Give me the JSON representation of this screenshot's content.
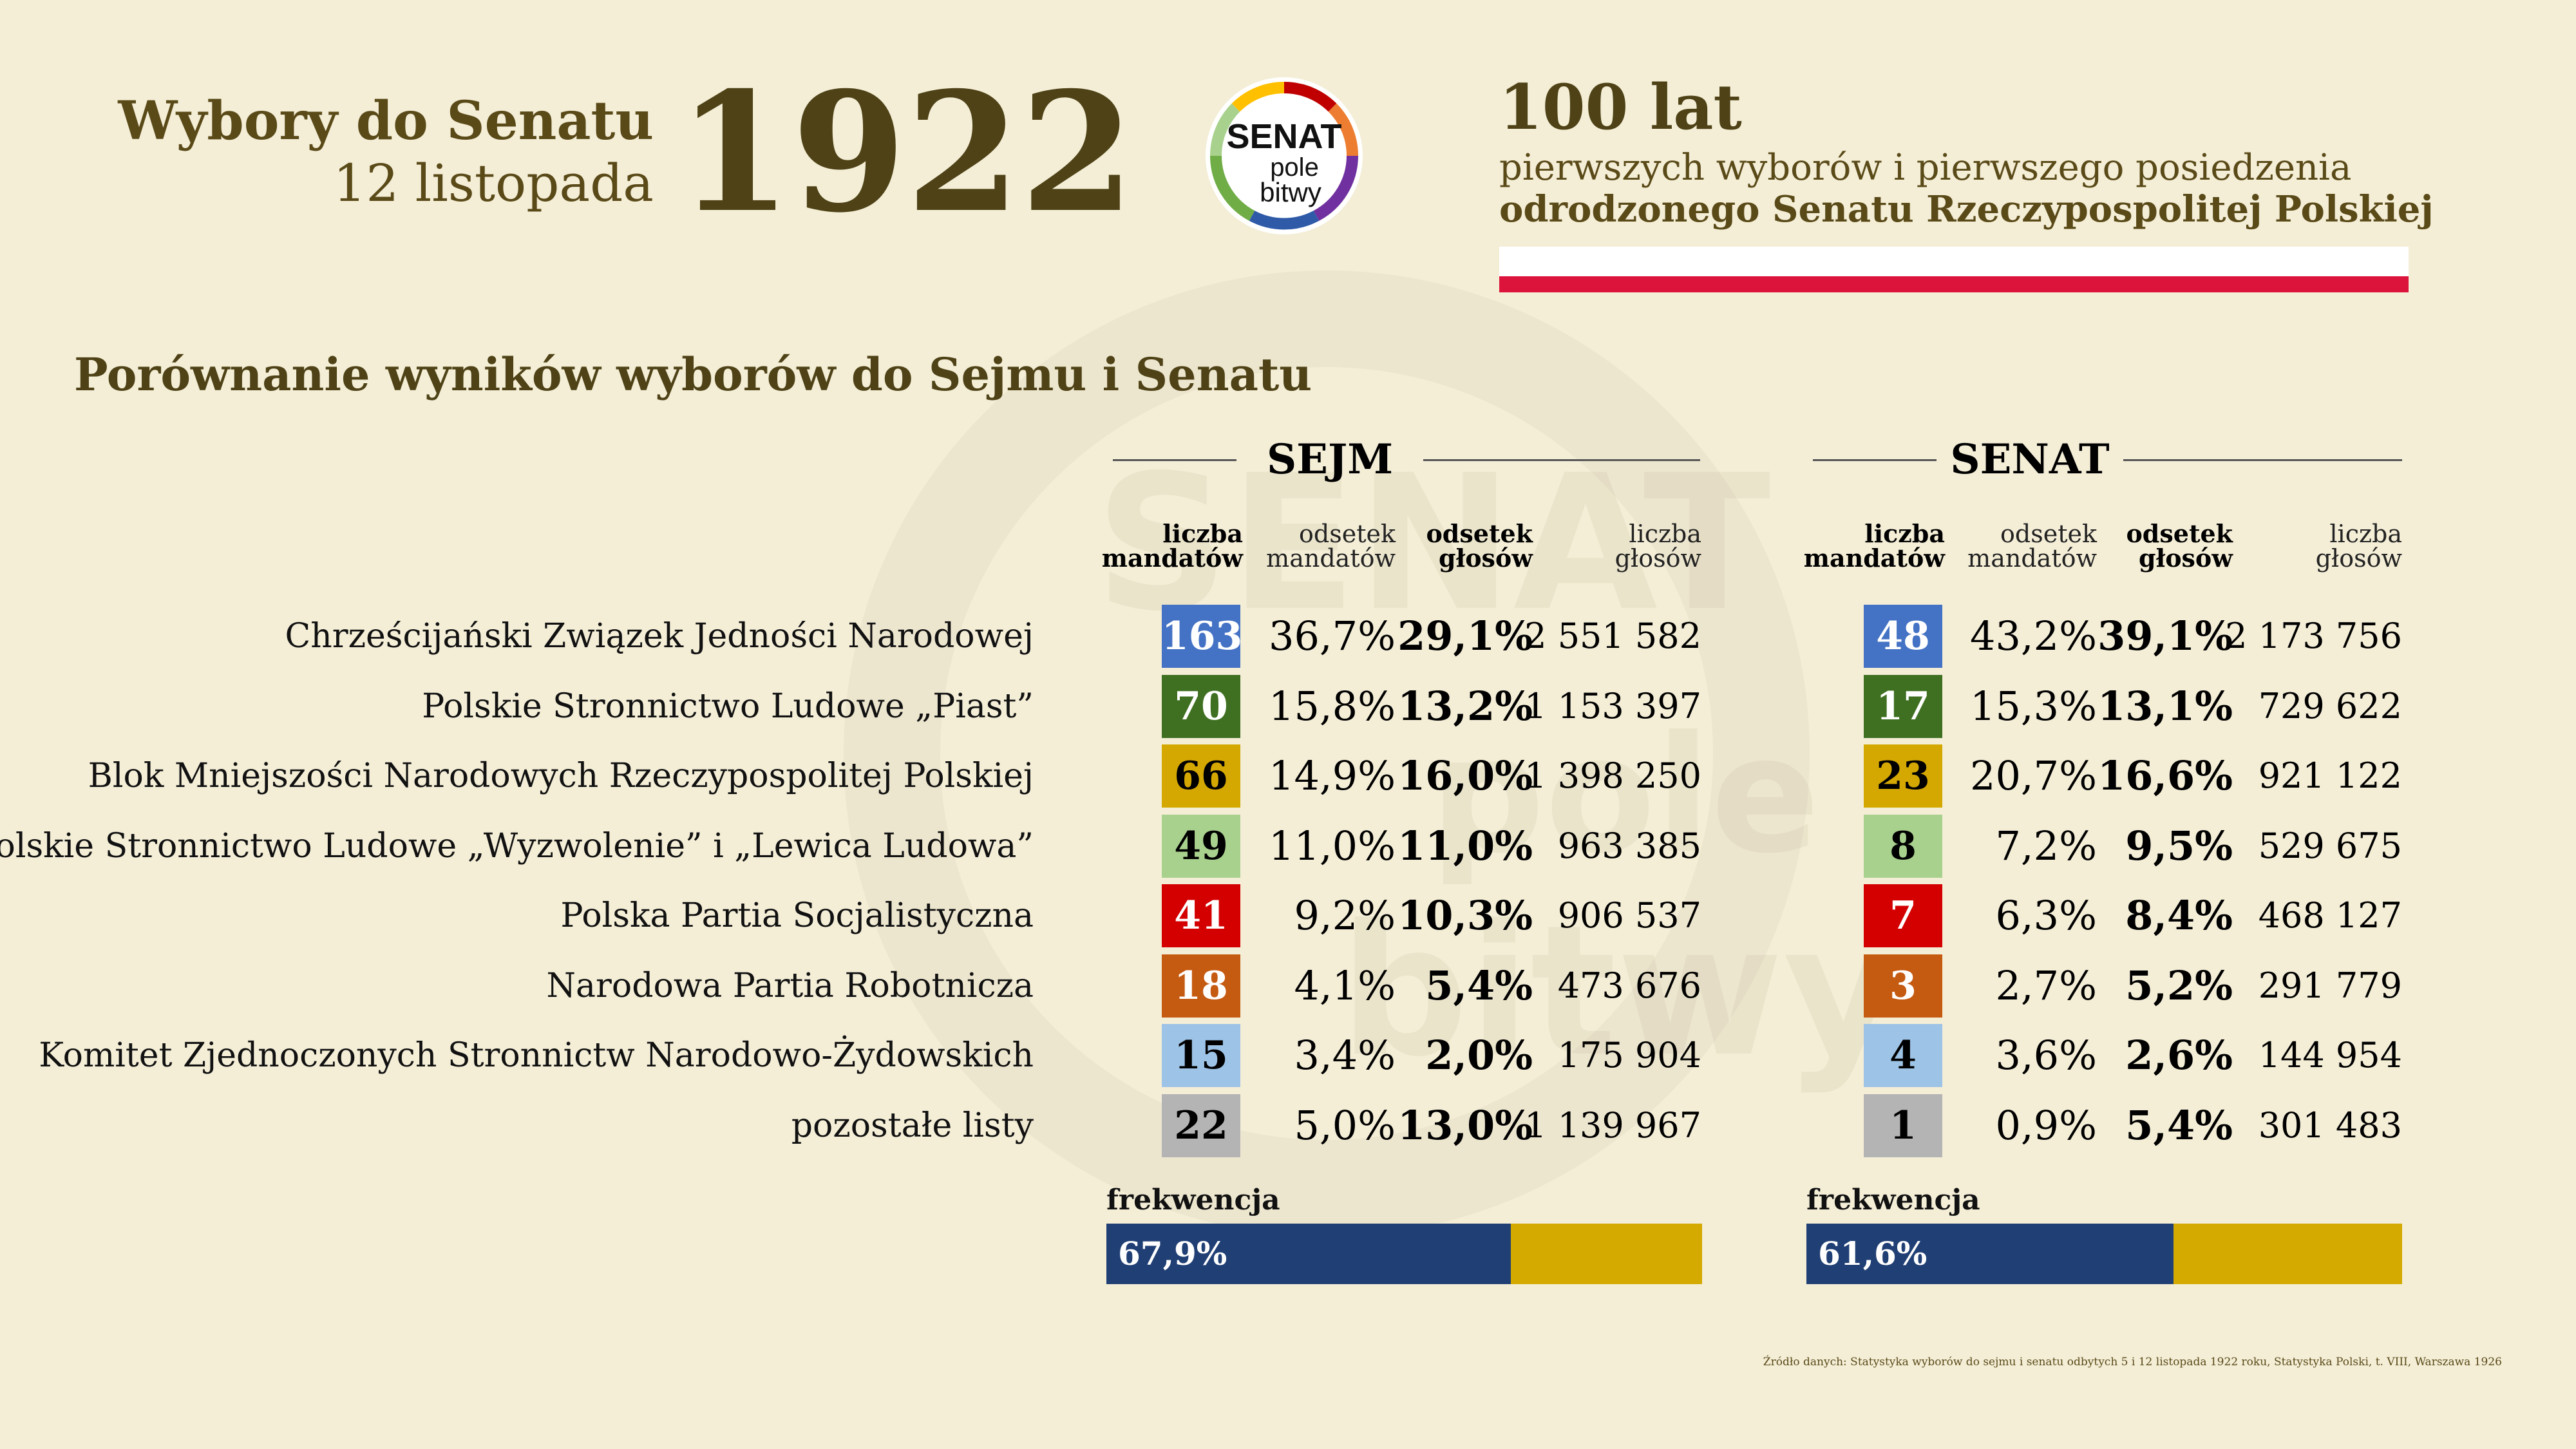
{
  "header": {
    "title": "Wybory do Senatu",
    "date": "12 listopada",
    "year": "1922",
    "logo": {
      "line1": "SENAT",
      "line2": "pole",
      "line3": "bitwy"
    },
    "anniversary_title": "100 lat",
    "anniversary_sub1": "pierwszych wyborów i pierwszego posiedzenia",
    "anniversary_sub2": "odrodzonego Senatu Rzeczypospolitej Polskiej"
  },
  "section_title": "Porównanie wyników wyborów do Sejmu i Senatu",
  "column_headers": {
    "seats": [
      "liczba",
      "mandatów"
    ],
    "seat_share": [
      "odsetek",
      "mandatów"
    ],
    "vote_share": [
      "odsetek",
      "głosów"
    ],
    "votes": [
      "liczba",
      "głosów"
    ]
  },
  "turnout_label": "frekwencja",
  "source": "Źródło danych: Statystyka wyborów do sejmu i senatu odbytych 5 i 12 listopada 1922 roku, Statystyka Polski, t. VIII, Warszawa 1926",
  "colors": {
    "party": [
      "#4472c4",
      "#3f7021",
      "#d4a800",
      "#a9d18e",
      "#d40000",
      "#c55a11",
      "#9dc3e6",
      "#b4b4b4"
    ],
    "party_text": [
      "#ffffff",
      "#ffffff",
      "#000000",
      "#000000",
      "#ffffff",
      "#ffffff",
      "#000000",
      "#000000"
    ],
    "turnout": "#203f74",
    "turnout_bg": "#d4a900",
    "flag_white": "#ffffff",
    "flag_red": "#dc143c"
  },
  "chart_data": {
    "type": "table",
    "parties": [
      "Chrześcijański Związek Jedności Narodowej",
      "Polskie Stronnictwo Ludowe „Piast”",
      "Blok Mniejszości Narodowych Rzeczypospolitej Polskiej",
      "Polskie Stronnictwo Ludowe „Wyzwolenie” i „Lewica Ludowa”",
      "Polska Partia Socjalistyczna",
      "Narodowa Partia Robotnicza",
      "Komitet Zjednoczonych Stronnictw Narodowo-Żydowskich",
      "pozostałe listy"
    ],
    "chambers": [
      {
        "name": "SEJM",
        "seats": [
          "163",
          "70",
          "66",
          "49",
          "41",
          "18",
          "15",
          "22"
        ],
        "seat_share": [
          "36,7%",
          "15,8%",
          "14,9%",
          "11,0%",
          "9,2%",
          "4,1%",
          "3,4%",
          "5,0%"
        ],
        "vote_share": [
          "29,1%",
          "13,2%",
          "16,0%",
          "11,0%",
          "10,3%",
          "5,4%",
          "2,0%",
          "13,0%"
        ],
        "votes": [
          "2 551 582",
          "1 153 397",
          "1 398 250",
          "963 385",
          "906 537",
          "473 676",
          "175 904",
          "1 139 967"
        ],
        "turnout": 0.679,
        "turnout_label": "67,9%"
      },
      {
        "name": "SENAT",
        "seats": [
          "48",
          "17",
          "23",
          "8",
          "7",
          "3",
          "4",
          "1"
        ],
        "seat_share": [
          "43,2%",
          "15,3%",
          "20,7%",
          "7,2%",
          "6,3%",
          "2,7%",
          "3,6%",
          "0,9%"
        ],
        "vote_share": [
          "39,1%",
          "13,1%",
          "16,6%",
          "9,5%",
          "8,4%",
          "5,2%",
          "2,6%",
          "5,4%"
        ],
        "votes": [
          "2 173 756",
          "729 622",
          "921 122",
          "529 675",
          "468 127",
          "291 779",
          "144 954",
          "301 483"
        ],
        "turnout": 0.616,
        "turnout_label": "61,6%"
      }
    ]
  }
}
